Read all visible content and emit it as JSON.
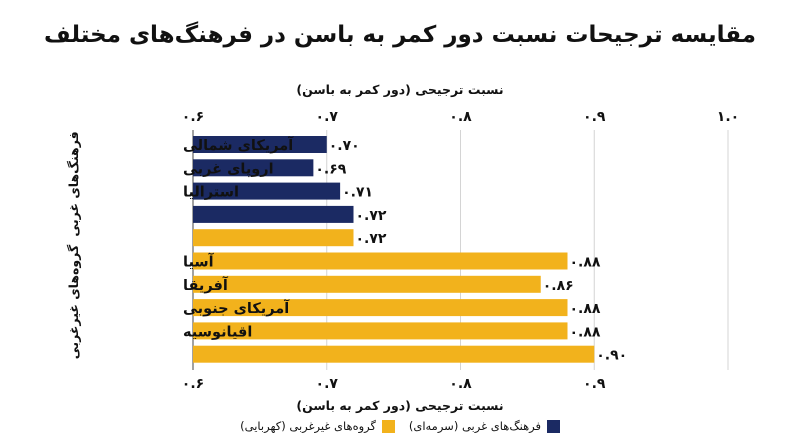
{
  "title": "مقایسه ترجیحات نسبت دور کمر به باسن در فرهنگ‌های مختلف",
  "legend": {
    "western": "فرهنگ‌های غربی (سرمه‌ای)",
    "nonwestern": "گروه‌های غیرغربی (کهربایی)"
  },
  "colors": {
    "western": "#1b2a63",
    "nonwestern": "#f2b21c",
    "grid": "#d4d4d4"
  },
  "chart_data": {
    "type": "bar",
    "orientation": "horizontal",
    "title": "مقایسه ترجیحات نسبت دور کمر به باسن در فرهنگ‌های مختلف",
    "xlabel_top": "نسبت ترجیحی (دور کمر به باسن)",
    "xlabel_bottom": "نسبت ترجیحی (دور کمر به باسن)",
    "xlim": [
      0.6,
      1.0
    ],
    "ticks_top": [
      "۰.۶",
      "۰.۷",
      "۰.۸",
      "۰.۹",
      "۱.۰"
    ],
    "ticks_bottom": [
      "۰.۶",
      "۰.۷",
      "۰.۸",
      "۰.۹"
    ],
    "group_labels": [
      "فرهنگ‌های غربی",
      "گروه‌های غیرغربی"
    ],
    "grid": true,
    "bars": [
      {
        "label": "آمریکای شمالی",
        "value": 0.7,
        "value_label": "۰.۷۰",
        "group": "western"
      },
      {
        "label": "اروپای غربی",
        "value": 0.69,
        "value_label": "۰.۶۹",
        "group": "western"
      },
      {
        "label": "استرالیا",
        "value": 0.71,
        "value_label": "۰.۷۱",
        "group": "western"
      },
      {
        "label": "",
        "value": 0.72,
        "value_label": "۰.۷۲",
        "group": "western"
      },
      {
        "label": "",
        "value": 0.72,
        "value_label": "۰.۷۲",
        "group": "nonwestern"
      },
      {
        "label": "آسیا",
        "value": 0.88,
        "value_label": "۰.۸۸",
        "group": "nonwestern"
      },
      {
        "label": "آفریقا",
        "value": 0.86,
        "value_label": "۰.۸۶",
        "group": "nonwestern"
      },
      {
        "label": "آمریکای جنوبی",
        "value": 0.88,
        "value_label": "۰.۸۸",
        "group": "nonwestern"
      },
      {
        "label": "اقیانوسیه",
        "value": 0.88,
        "value_label": "۰.۸۸",
        "group": "nonwestern"
      },
      {
        "label": "",
        "value": 0.9,
        "value_label": "۰.۹۰",
        "group": "nonwestern"
      }
    ]
  }
}
